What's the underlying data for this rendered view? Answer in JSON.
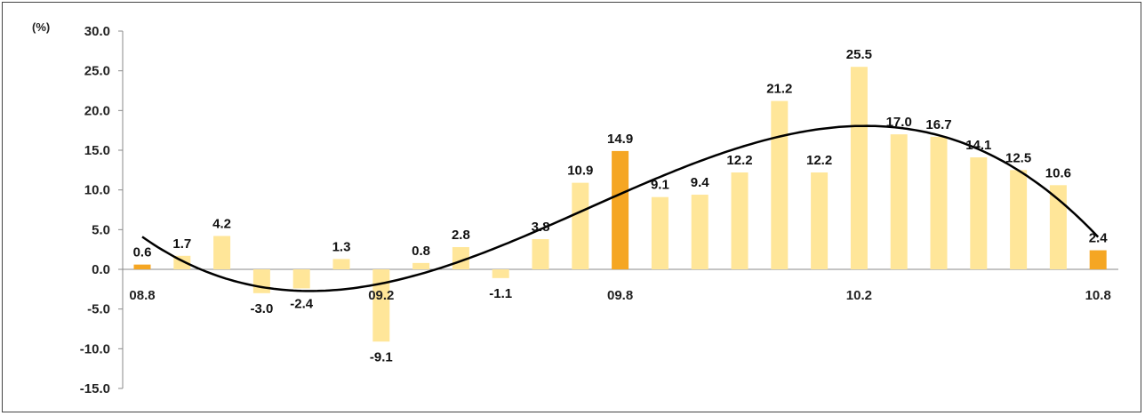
{
  "chart_data": {
    "type": "bar",
    "unit_label": "(%)",
    "categories": [
      "08.8",
      "",
      "",
      "",
      "",
      "",
      "09.2",
      "",
      "",
      "",
      "",
      "",
      "09.8",
      "",
      "",
      "",
      "",
      "",
      "10.2",
      "",
      "",
      "",
      "",
      "",
      "10.8"
    ],
    "values": [
      0.6,
      1.7,
      4.2,
      -3.0,
      -2.4,
      1.3,
      -9.1,
      0.8,
      2.8,
      -1.1,
      3.8,
      10.9,
      14.9,
      9.1,
      9.4,
      12.2,
      21.2,
      12.2,
      25.5,
      17.0,
      16.7,
      14.1,
      12.5,
      10.6,
      2.4
    ],
    "value_labels": [
      "0.6",
      "1.7",
      "4.2",
      "-3.0",
      "-2.4",
      "1.3",
      "-9.1",
      "0.8",
      "2.8",
      "-1.1",
      "3.8",
      "10.9",
      "14.9",
      "9.1",
      "9.4",
      "12.2",
      "21.2",
      "12.2",
      "25.5",
      "17.0",
      "16.7",
      "14.1",
      "12.5",
      "10.6",
      "2.4"
    ],
    "highlight_indices": [
      0,
      12,
      24
    ],
    "yticks": [
      "30.0",
      "25.0",
      "20.0",
      "15.0",
      "10.0",
      "5.0",
      "0.0",
      "-5.0",
      "-10.0",
      "-15.0"
    ],
    "ylim": [
      -15,
      30
    ],
    "trendline": true,
    "colors": {
      "bar": "#FFE699",
      "highlight": "#F5A623",
      "trend": "#000000"
    },
    "title": "",
    "xlabel": "",
    "ylabel": ""
  }
}
